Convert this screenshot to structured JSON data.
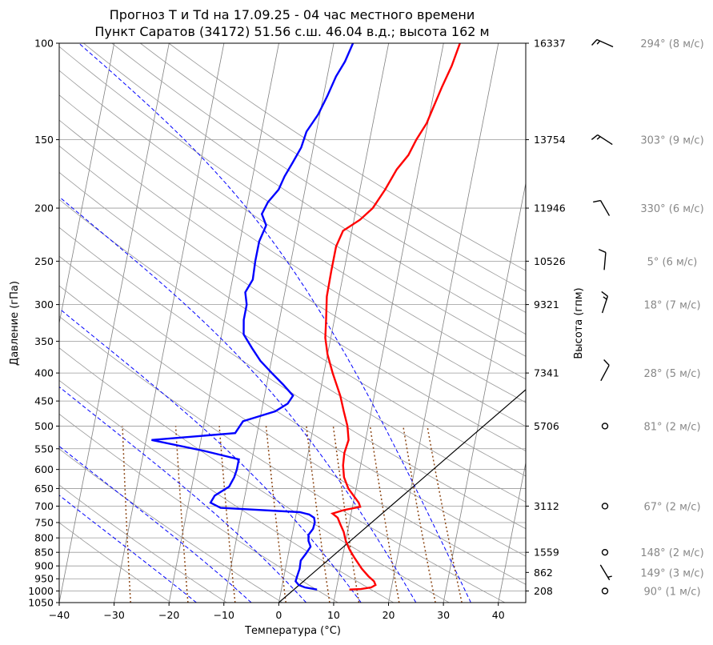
{
  "chart_data": {
    "type": "line",
    "diagram": "skew-T log-p",
    "title": "Прогноз T и Td на 17.09.25 - 04 час местного времени",
    "subtitle": "Пункт Саратов (34172) 51.56 с.ш. 46.04 в.д.; высота 162 м",
    "xlabel": "Температура (°C)",
    "ylabel": "Давление (гПа)",
    "ylabel_right": "Высота (гпм)",
    "xlim": [
      -40,
      45
    ],
    "ylim": [
      1050,
      100
    ],
    "y_scale": "log",
    "x_ticks": [
      "−40",
      "−30",
      "−20",
      "−10",
      "0",
      "10",
      "20",
      "30",
      "40"
    ],
    "pressure_ticks": [
      100,
      150,
      200,
      250,
      300,
      350,
      400,
      450,
      500,
      550,
      600,
      650,
      700,
      750,
      800,
      850,
      900,
      950,
      1000,
      1050
    ],
    "height_ticks": [
      {
        "p": 100,
        "label": "16337"
      },
      {
        "p": 150,
        "label": "13754"
      },
      {
        "p": 200,
        "label": "11946"
      },
      {
        "p": 250,
        "label": "10526"
      },
      {
        "p": 300,
        "label": "9321"
      },
      {
        "p": 400,
        "label": "7341"
      },
      {
        "p": 500,
        "label": "5706"
      },
      {
        "p": 700,
        "label": "3112"
      },
      {
        "p": 850,
        "label": "1559"
      },
      {
        "p": 925,
        "label": "862"
      },
      {
        "p": 1000,
        "label": "208"
      }
    ],
    "series": [
      {
        "color": "#ff0000",
        "points": [
          [
            994,
            12.4
          ],
          [
            992,
            14.5
          ],
          [
            985,
            16.3
          ],
          [
            975,
            17.0
          ],
          [
            960,
            16.6
          ],
          [
            940,
            15.4
          ],
          [
            910,
            13.9
          ],
          [
            870,
            12.2
          ],
          [
            840,
            11.0
          ],
          [
            810,
            10.0
          ],
          [
            780,
            9.3
          ],
          [
            755,
            8.4
          ],
          [
            735,
            7.7
          ],
          [
            722,
            6.6
          ],
          [
            712,
            8.5
          ],
          [
            702,
            11.4
          ],
          [
            690,
            11.0
          ],
          [
            670,
            9.8
          ],
          [
            650,
            8.6
          ],
          [
            620,
            7.4
          ],
          [
            590,
            6.8
          ],
          [
            560,
            6.6
          ],
          [
            530,
            6.9
          ],
          [
            500,
            6.2
          ],
          [
            470,
            5.0
          ],
          [
            440,
            3.8
          ],
          [
            400,
            1.6
          ],
          [
            370,
            0.0
          ],
          [
            345,
            -1.0
          ],
          [
            320,
            -1.5
          ],
          [
            290,
            -2.2
          ],
          [
            260,
            -2.3
          ],
          [
            235,
            -2.3
          ],
          [
            220,
            -1.6
          ],
          [
            210,
            1.1
          ],
          [
            200,
            3.0
          ],
          [
            185,
            4.6
          ],
          [
            170,
            6.0
          ],
          [
            160,
            7.6
          ],
          [
            150,
            8.5
          ],
          [
            140,
            9.8
          ],
          [
            130,
            10.5
          ],
          [
            120,
            11.3
          ],
          [
            110,
            12.3
          ],
          [
            100,
            13.0
          ]
        ]
      },
      {
        "color": "#0000ff",
        "points": [
          [
            994,
            6.5
          ],
          [
            985,
            4.2
          ],
          [
            975,
            3.0
          ],
          [
            960,
            2.3
          ],
          [
            940,
            2.4
          ],
          [
            910,
            2.6
          ],
          [
            880,
            2.5
          ],
          [
            855,
            3.2
          ],
          [
            830,
            3.8
          ],
          [
            810,
            3.2
          ],
          [
            790,
            3.0
          ],
          [
            770,
            3.6
          ],
          [
            750,
            3.7
          ],
          [
            735,
            3.4
          ],
          [
            725,
            2.4
          ],
          [
            718,
            0.6
          ],
          [
            705,
            -14.0
          ],
          [
            690,
            -16.0
          ],
          [
            670,
            -15.5
          ],
          [
            645,
            -13.2
          ],
          [
            620,
            -12.6
          ],
          [
            600,
            -12.4
          ],
          [
            575,
            -12.4
          ],
          [
            555,
            -19.0
          ],
          [
            530,
            -29.0
          ],
          [
            515,
            -14.0
          ],
          [
            490,
            -13.0
          ],
          [
            470,
            -7.5
          ],
          [
            455,
            -5.5
          ],
          [
            440,
            -4.8
          ],
          [
            420,
            -7.0
          ],
          [
            400,
            -9.5
          ],
          [
            380,
            -12.0
          ],
          [
            360,
            -14.0
          ],
          [
            340,
            -16.0
          ],
          [
            320,
            -16.5
          ],
          [
            300,
            -16.5
          ],
          [
            285,
            -17.2
          ],
          [
            270,
            -16.3
          ],
          [
            250,
            -16.5
          ],
          [
            230,
            -16.5
          ],
          [
            215,
            -15.8
          ],
          [
            205,
            -17.0
          ],
          [
            195,
            -16.3
          ],
          [
            185,
            -14.8
          ],
          [
            175,
            -14.2
          ],
          [
            165,
            -13.2
          ],
          [
            155,
            -12.2
          ],
          [
            145,
            -11.8
          ],
          [
            135,
            -10.3
          ],
          [
            125,
            -9.3
          ],
          [
            115,
            -8.4
          ],
          [
            108,
            -7.3
          ],
          [
            100,
            -6.5
          ]
        ]
      }
    ],
    "reference_lines": [
      {
        "kind": "parcel",
        "color": "#000000",
        "points": [
          [
            1050,
            0
          ],
          [
            375,
            43.0
          ]
        ]
      }
    ],
    "background": {
      "isotherms_c": [
        -100,
        -90,
        -80,
        -70,
        -60,
        -50,
        -40,
        -30,
        -20,
        -10,
        0,
        10,
        20,
        30,
        40
      ],
      "dry_adiabats_theta_k": [
        250,
        260,
        270,
        280,
        290,
        300,
        310,
        320,
        330,
        340,
        350,
        360,
        370,
        380,
        390,
        400,
        410,
        420,
        430,
        440,
        450
      ],
      "moist_adiabats_start_c": [
        -15,
        -5,
        5,
        15,
        25,
        35
      ],
      "mixing_ratio_g_kg": [
        0.4,
        1,
        2,
        4,
        7,
        10,
        16,
        24,
        32
      ],
      "isotherm_color": "#808080",
      "dry_adiabat_color": "#999999",
      "moist_adiabat_color": "#0000ff",
      "mixing_ratio_color": "#8b4513"
    },
    "wind": [
      {
        "p": 100,
        "dir_deg": 294,
        "speed_ms": 8,
        "label": "294° (8 м/с)"
      },
      {
        "p": 150,
        "dir_deg": 303,
        "speed_ms": 9,
        "label": "303° (9 м/с)"
      },
      {
        "p": 200,
        "dir_deg": 330,
        "speed_ms": 6,
        "label": "330° (6 м/с)"
      },
      {
        "p": 250,
        "dir_deg": 5,
        "speed_ms": 6,
        "label": "5° (6 м/с)"
      },
      {
        "p": 300,
        "dir_deg": 18,
        "speed_ms": 7,
        "label": "18° (7 м/с)"
      },
      {
        "p": 400,
        "dir_deg": 28,
        "speed_ms": 5,
        "label": "28° (5 м/с)"
      },
      {
        "p": 500,
        "dir_deg": 81,
        "speed_ms": 2,
        "label": "81° (2 м/с)"
      },
      {
        "p": 700,
        "dir_deg": 67,
        "speed_ms": 2,
        "label": "67° (2 м/с)"
      },
      {
        "p": 850,
        "dir_deg": 148,
        "speed_ms": 2,
        "label": "148° (2 м/с)"
      },
      {
        "p": 925,
        "dir_deg": 149,
        "speed_ms": 3,
        "label": "149° (3 м/с)"
      },
      {
        "p": 1000,
        "dir_deg": 90,
        "speed_ms": 1,
        "label": "90° (1 м/с)"
      }
    ]
  }
}
